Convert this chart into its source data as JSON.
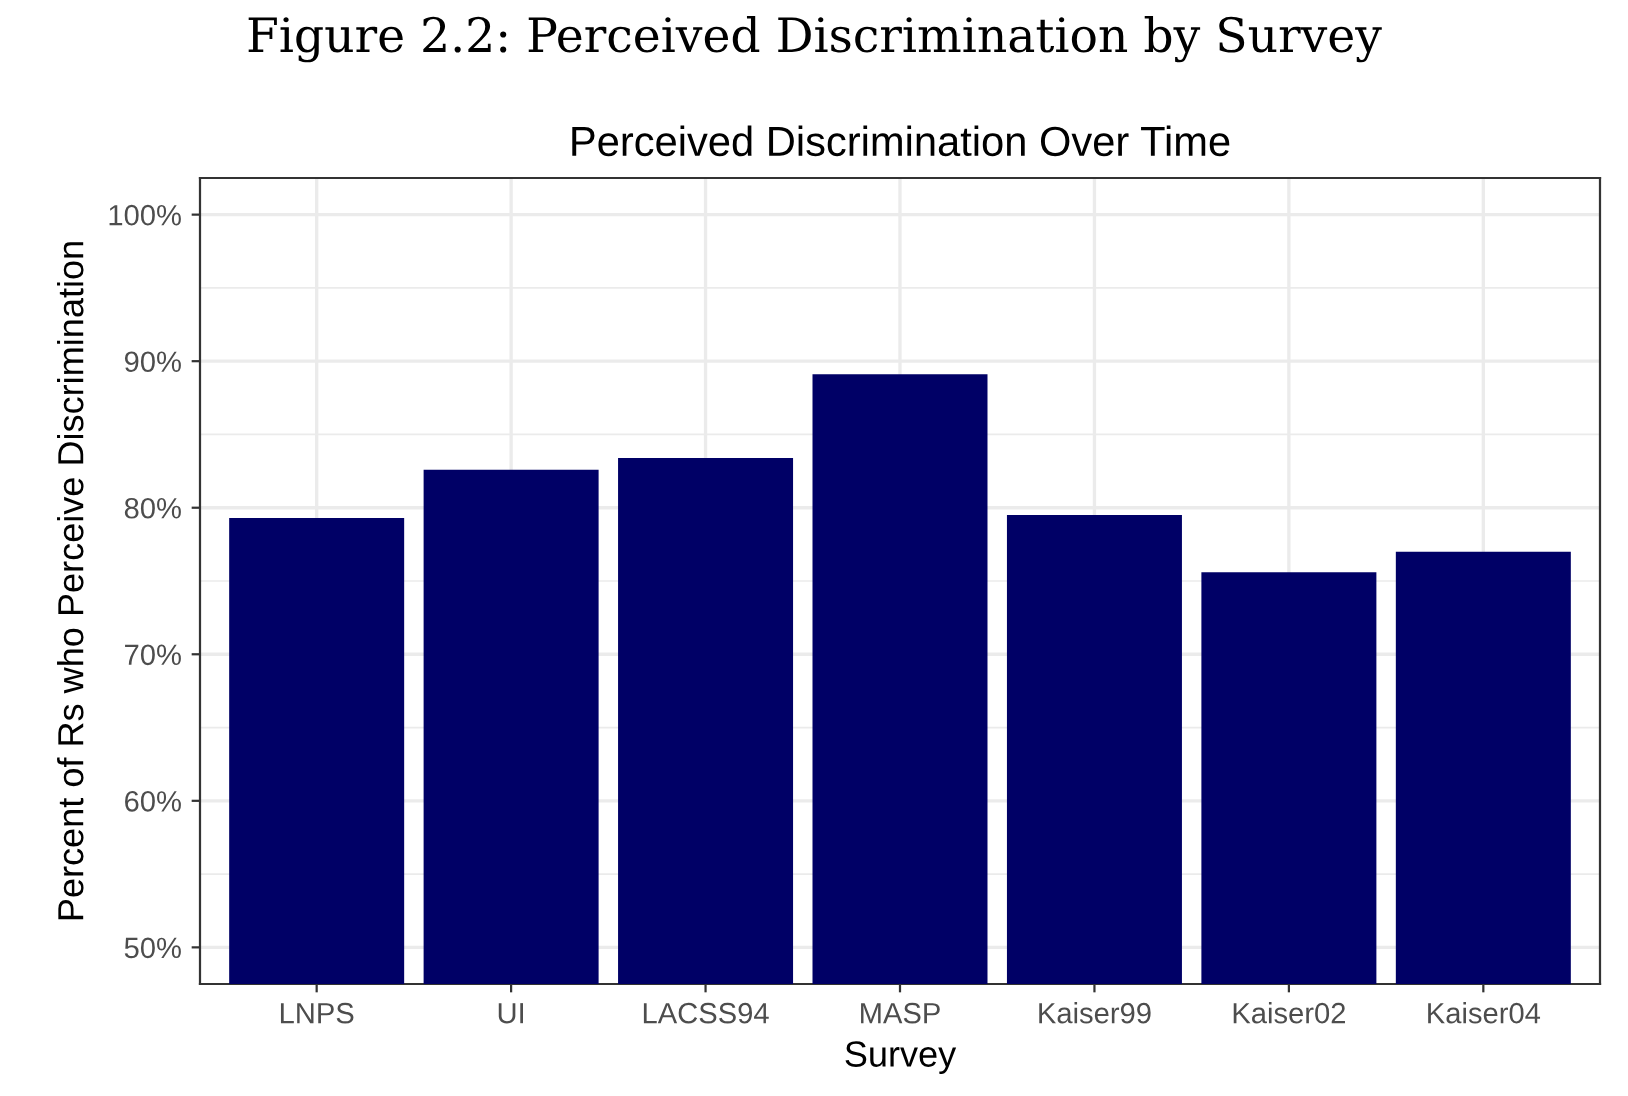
{
  "chart_data": {
    "type": "bar",
    "title": "Perceived Discrimination Over Time",
    "annotations": [
      "Figure 2.2: Perceived Discrimination by Survey"
    ],
    "xlabel": "Survey",
    "ylabel": "Percent of Rs who Perceive Discrimination",
    "categories": [
      "LNPS",
      "UI",
      "LACSS94",
      "MASP",
      "Kaiser99",
      "Kaiser02",
      "Kaiser04"
    ],
    "values": [
      79.3,
      82.6,
      83.4,
      89.1,
      79.5,
      75.6,
      77.0
    ],
    "color": "#000066",
    "ylim": [
      47.5,
      102.5
    ],
    "yticks": [
      {
        "value": 50,
        "label": "50%"
      },
      {
        "value": 55,
        "label": null
      },
      {
        "value": 60,
        "label": "60%"
      },
      {
        "value": 65,
        "label": null
      },
      {
        "value": 70,
        "label": "70%"
      },
      {
        "value": 75,
        "label": null
      },
      {
        "value": 80,
        "label": "80%"
      },
      {
        "value": 85,
        "label": null
      },
      {
        "value": 90,
        "label": "90%"
      },
      {
        "value": 95,
        "label": null
      },
      {
        "value": 100,
        "label": "100%"
      }
    ],
    "grid": true
  }
}
